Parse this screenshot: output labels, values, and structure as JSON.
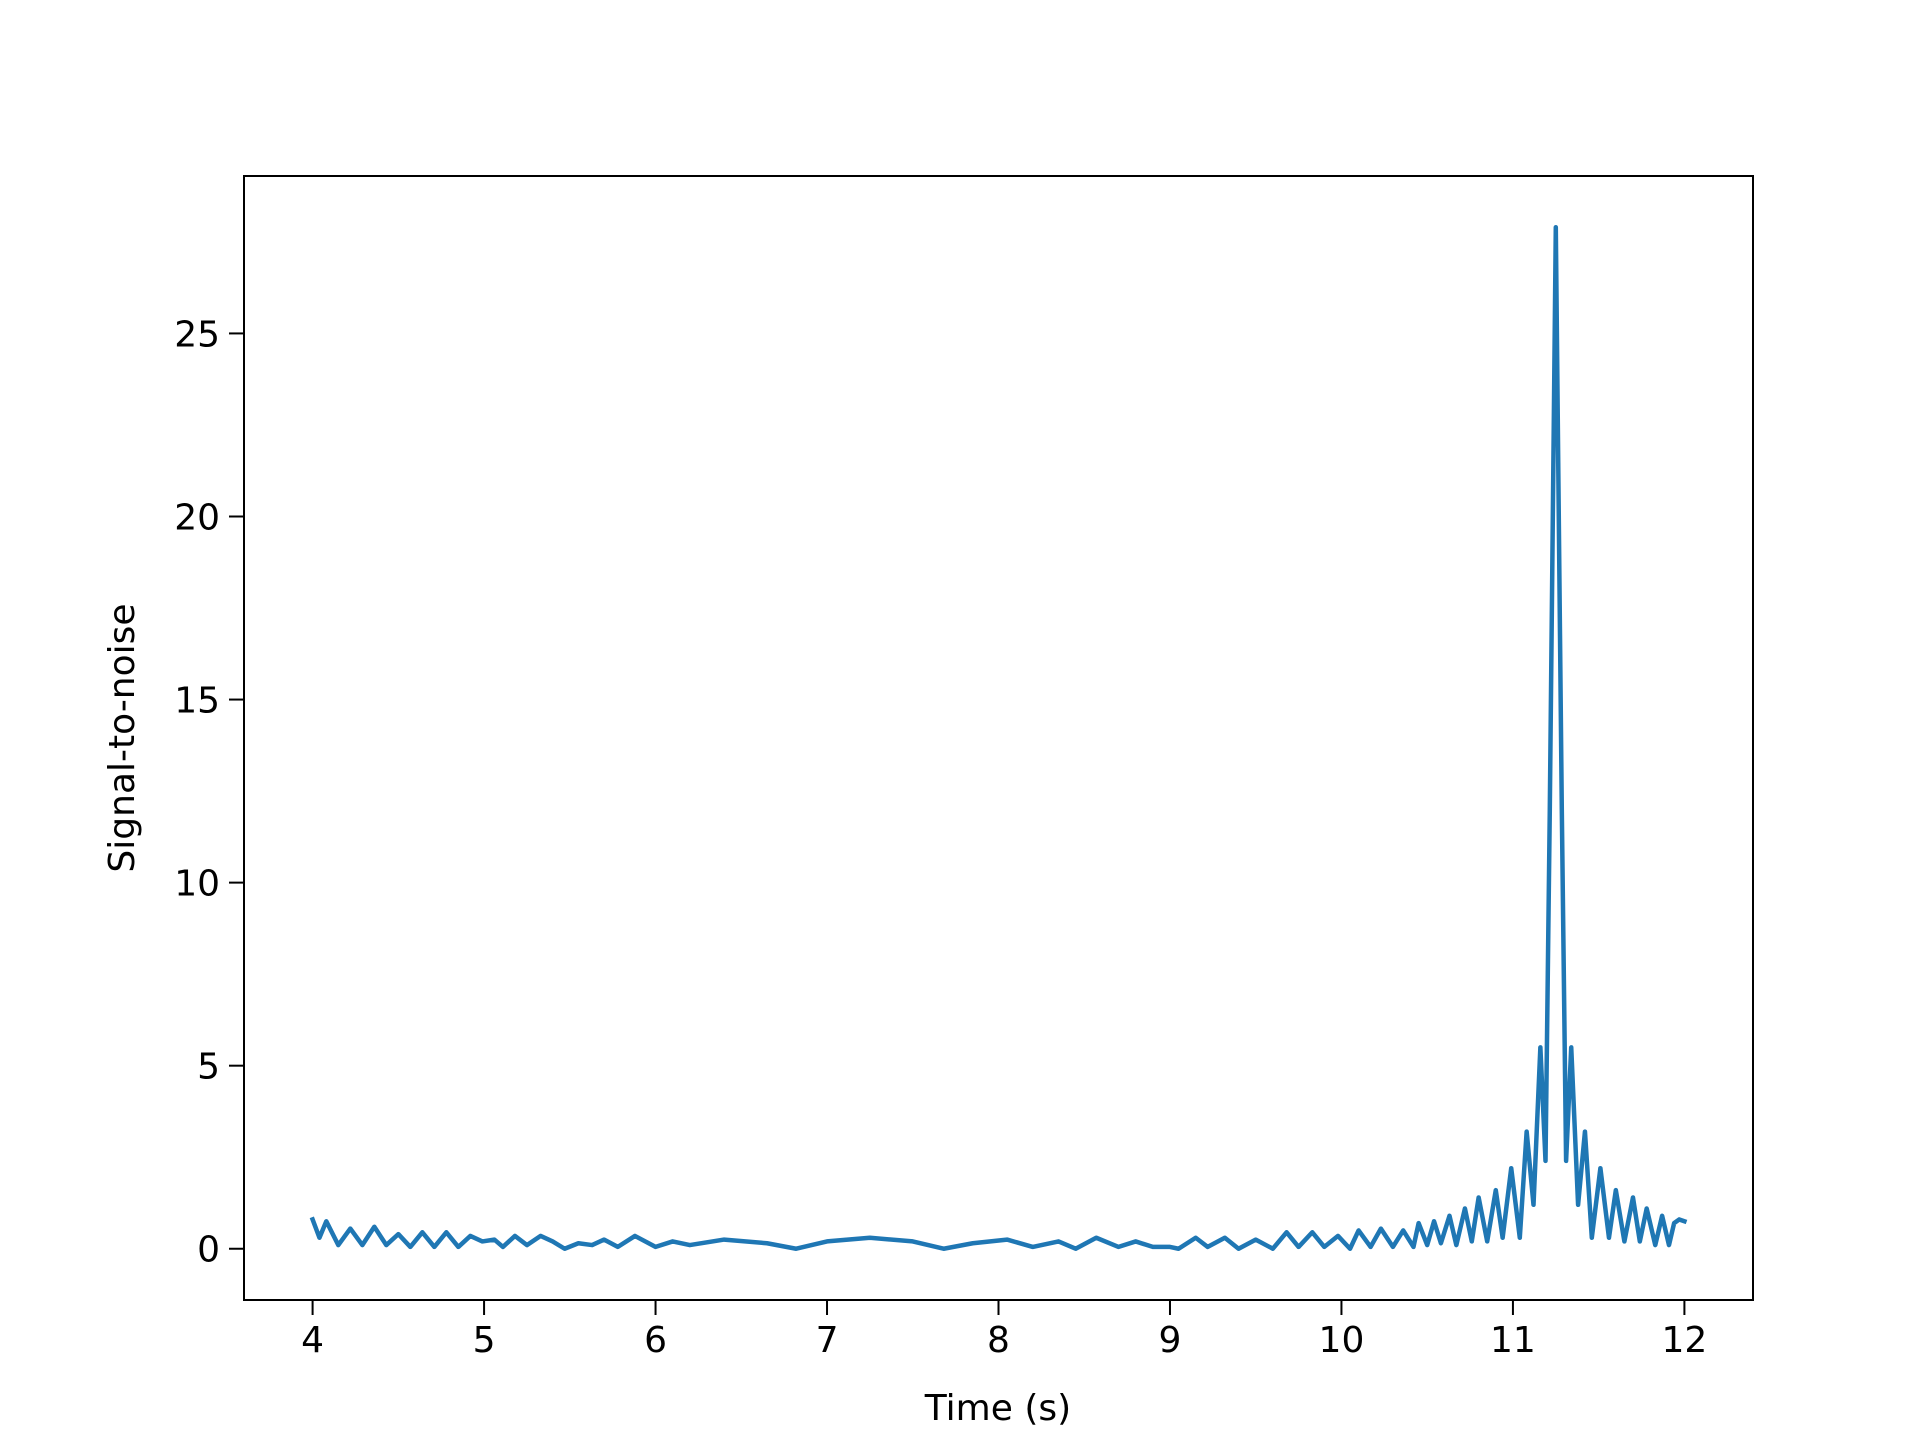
{
  "chart_data": {
    "type": "line",
    "xlabel": "Time (s)",
    "ylabel": "Signal-to-noise",
    "color": "#1f77b4",
    "xlim": [
      3.6,
      12.4
    ],
    "ylim": [
      -1.4,
      29.3
    ],
    "xticks": [
      4,
      5,
      6,
      7,
      8,
      9,
      10,
      11,
      12
    ],
    "yticks": [
      0,
      5,
      10,
      15,
      20,
      25
    ],
    "grid": false,
    "x": [
      4.0,
      4.04,
      4.08,
      4.15,
      4.22,
      4.29,
      4.36,
      4.43,
      4.5,
      4.57,
      4.64,
      4.71,
      4.78,
      4.85,
      4.92,
      4.99,
      5.06,
      5.11,
      5.18,
      5.25,
      5.33,
      5.4,
      5.47,
      5.55,
      5.63,
      5.7,
      5.78,
      5.88,
      6.0,
      6.1,
      6.2,
      6.4,
      6.65,
      6.82,
      7.0,
      7.25,
      7.5,
      7.68,
      7.85,
      8.05,
      8.2,
      8.35,
      8.45,
      8.57,
      8.7,
      8.8,
      8.9,
      9.0,
      9.05,
      9.15,
      9.22,
      9.32,
      9.4,
      9.5,
      9.6,
      9.68,
      9.75,
      9.83,
      9.9,
      9.98,
      10.05,
      10.1,
      10.17,
      10.23,
      10.3,
      10.36,
      10.42,
      10.45,
      10.5,
      10.54,
      10.58,
      10.63,
      10.67,
      10.72,
      10.76,
      10.8,
      10.85,
      10.9,
      10.94,
      10.99,
      11.04,
      11.08,
      11.12,
      11.16,
      11.19,
      11.215,
      11.25,
      11.285,
      11.31,
      11.34,
      11.38,
      11.42,
      11.46,
      11.51,
      11.56,
      11.6,
      11.65,
      11.7,
      11.74,
      11.78,
      11.83,
      11.87,
      11.91,
      11.94,
      11.97,
      12.0
    ],
    "values": [
      0.8,
      0.3,
      0.75,
      0.1,
      0.55,
      0.1,
      0.6,
      0.1,
      0.4,
      0.05,
      0.45,
      0.05,
      0.45,
      0.05,
      0.35,
      0.2,
      0.25,
      0.05,
      0.35,
      0.1,
      0.35,
      0.2,
      0.0,
      0.15,
      0.1,
      0.25,
      0.05,
      0.35,
      0.05,
      0.2,
      0.1,
      0.25,
      0.15,
      0.0,
      0.2,
      0.3,
      0.2,
      0.0,
      0.15,
      0.25,
      0.05,
      0.2,
      0.0,
      0.3,
      0.05,
      0.2,
      0.05,
      0.05,
      0.0,
      0.3,
      0.05,
      0.3,
      0.0,
      0.25,
      0.0,
      0.45,
      0.05,
      0.45,
      0.05,
      0.35,
      0.0,
      0.5,
      0.05,
      0.55,
      0.05,
      0.5,
      0.05,
      0.7,
      0.1,
      0.75,
      0.15,
      0.9,
      0.1,
      1.1,
      0.2,
      1.4,
      0.2,
      1.6,
      0.3,
      2.2,
      0.3,
      3.2,
      1.2,
      5.5,
      2.4,
      12,
      27.9,
      12,
      2.4,
      5.5,
      1.2,
      3.2,
      0.3,
      2.2,
      0.3,
      1.6,
      0.2,
      1.4,
      0.2,
      1.1,
      0.1,
      0.9,
      0.1,
      0.7,
      0.8,
      0.75
    ]
  }
}
